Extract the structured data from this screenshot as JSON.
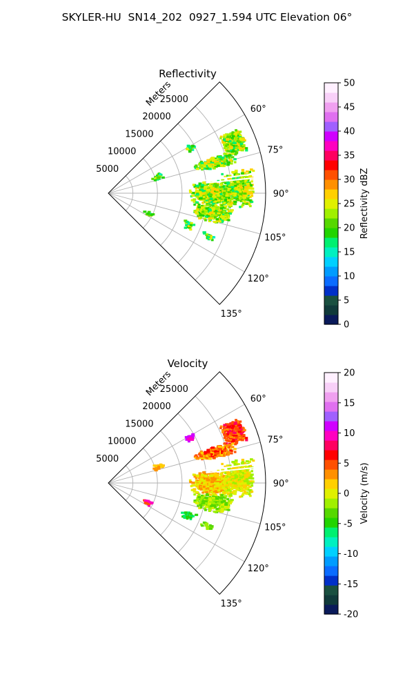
{
  "suptitle": "SKYLER-HU  SN14_202  0927_1.594 UTC Elevation 06°",
  "chart_data": [
    {
      "type": "polar-sector",
      "title": "Reflectivity",
      "radial_label": "Meters",
      "radial_ticks": [
        5000,
        10000,
        15000,
        20000,
        25000
      ],
      "r_max": 32000,
      "theta_range_deg": [
        45,
        135
      ],
      "angle_ticks_deg": [
        60,
        75,
        90,
        105,
        120,
        135
      ],
      "angle_tick_labels": [
        "60°",
        "75°",
        "90°",
        "105°",
        "120°",
        "135°"
      ],
      "grid": true,
      "colorbar": {
        "label": "Reflectivity dBZ",
        "range": [
          0,
          50
        ],
        "ticks": [
          0,
          5,
          10,
          15,
          20,
          25,
          30,
          35,
          40,
          45,
          50
        ],
        "colors": [
          "#0a1a5a",
          "#103a3a",
          "#1a5040",
          "#0030c8",
          "#0a6cff",
          "#009cff",
          "#00d0ff",
          "#00f0c0",
          "#00f070",
          "#22d400",
          "#56d800",
          "#a0f000",
          "#e0f000",
          "#ffd000",
          "#ff9000",
          "#ff5000",
          "#ff0000",
          "#ff0060",
          "#ff00c0",
          "#d000ff",
          "#a060ff",
          "#e070f0",
          "#f0a0f0",
          "#f8d0f8",
          "#fff0ff"
        ]
      }
    },
    {
      "type": "polar-sector",
      "title": "Velocity",
      "radial_label": "Meters",
      "radial_ticks": [
        5000,
        10000,
        15000,
        20000,
        25000
      ],
      "r_max": 32000,
      "theta_range_deg": [
        45,
        135
      ],
      "angle_ticks_deg": [
        60,
        75,
        90,
        105,
        120,
        135
      ],
      "angle_tick_labels": [
        "60°",
        "75°",
        "90°",
        "105°",
        "120°",
        "135°"
      ],
      "grid": true,
      "colorbar": {
        "label": "Velocity (m/s)",
        "range": [
          -20,
          20
        ],
        "ticks": [
          -20,
          -15,
          -10,
          -5,
          0,
          5,
          10,
          15,
          20
        ],
        "colors": [
          "#0a1a5a",
          "#103a3a",
          "#1a5040",
          "#0030c8",
          "#0a6cff",
          "#009cff",
          "#00d0ff",
          "#00f0c0",
          "#00f070",
          "#22d400",
          "#56d800",
          "#a0f000",
          "#e0f000",
          "#ffd000",
          "#ff9000",
          "#ff5000",
          "#ff0000",
          "#ff0060",
          "#ff00c0",
          "#d000ff",
          "#a060ff",
          "#e070f0",
          "#f0a0f0",
          "#f8d0f8",
          "#fff0ff"
        ]
      }
    }
  ]
}
